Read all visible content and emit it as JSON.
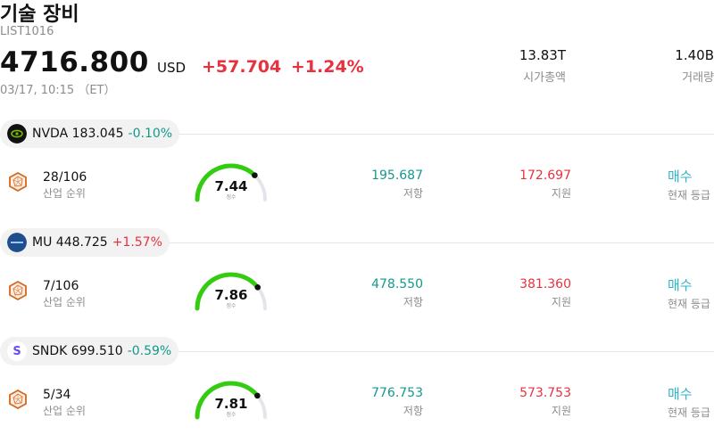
{
  "header": {
    "title": "기술 장비",
    "code": "LIST1016",
    "price": "4716.800",
    "currency": "USD",
    "change_abs": "+57.704",
    "change_pct": "+1.24%",
    "timestamp": "03/17, 10:15 （ET）",
    "stats": [
      {
        "value": "13.83T",
        "label": "시가총액"
      },
      {
        "value": "1.40B",
        "label": "거래량"
      }
    ]
  },
  "stocks": [
    {
      "symbol": "NVDA",
      "price": "183.045",
      "change_pct": "-0.10%",
      "direction": "neg",
      "logo_icon": "nvidia-logo-icon",
      "logo_color": "#111111",
      "rank": "28/106",
      "rank_label": "산업 순위",
      "score": "7.44",
      "score_fraction": 0.744,
      "score_caption": "점수",
      "resistance": "195.687",
      "resistance_label": "저항",
      "support": "172.697",
      "support_label": "지원",
      "rating": "매수",
      "rating_label": "현재 등급"
    },
    {
      "symbol": "MU",
      "price": "448.725",
      "change_pct": "+1.57%",
      "direction": "pos",
      "logo_icon": "micron-logo-icon",
      "logo_color": "#1f4e8c",
      "rank": "7/106",
      "rank_label": "산업 순위",
      "score": "7.86",
      "score_fraction": 0.786,
      "score_caption": "점수",
      "resistance": "478.550",
      "resistance_label": "저항",
      "support": "381.360",
      "support_label": "지원",
      "rating": "매수",
      "rating_label": "현재 등급"
    },
    {
      "symbol": "SNDK",
      "price": "699.510",
      "change_pct": "-0.59%",
      "direction": "neg",
      "logo_icon": "sandisk-logo-icon",
      "logo_letter": "S",
      "logo_color": "#6b4df0",
      "rank": "5/34",
      "rank_label": "산업 순위",
      "score": "7.81",
      "score_fraction": 0.781,
      "score_caption": "점수",
      "resistance": "776.753",
      "resistance_label": "저항",
      "support": "573.753",
      "support_label": "지원",
      "rating": "매수",
      "rating_label": "현재 등급"
    }
  ],
  "colors": {
    "up": "#e8313f",
    "down": "#13998c",
    "gauge": "#33cc11",
    "rating": "#2fb5c8"
  }
}
